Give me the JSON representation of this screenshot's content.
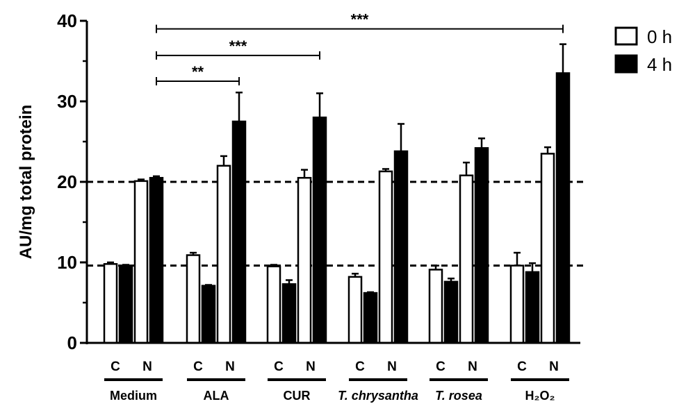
{
  "chart_data": {
    "type": "bar",
    "title": "",
    "ylabel": "AU/mg total protein",
    "xlabel": "",
    "ylim": [
      0,
      40
    ],
    "yticks": [
      "0",
      "10",
      "20",
      "30",
      "40"
    ],
    "grid": false,
    "legend_position": "top-right",
    "groups": [
      {
        "label": "Medium",
        "italic": false,
        "subs": [
          "C",
          "N"
        ]
      },
      {
        "label": "ALA",
        "italic": false,
        "subs": [
          "C",
          "N"
        ]
      },
      {
        "label": "CUR",
        "italic": false,
        "subs": [
          "C",
          "N"
        ]
      },
      {
        "label": "T. chrysantha",
        "italic": true,
        "subs": [
          "C",
          "N"
        ]
      },
      {
        "label": "T. rosea",
        "italic": true,
        "subs": [
          "C",
          "N"
        ]
      },
      {
        "label": "H2O2",
        "display": "H₂O₂",
        "italic": false,
        "subs": [
          "C",
          "N"
        ]
      }
    ],
    "series": [
      {
        "name": "0 h",
        "fill": "#ffffff",
        "values": [
          9.8,
          20.1,
          10.9,
          22.0,
          9.5,
          20.5,
          8.2,
          21.3,
          9.1,
          20.8,
          9.6,
          23.5
        ],
        "errors": [
          0.2,
          0.2,
          0.3,
          1.2,
          0.2,
          1.0,
          0.4,
          0.3,
          0.5,
          1.6,
          1.6,
          0.8
        ]
      },
      {
        "name": "4 h",
        "fill": "#000000",
        "values": [
          9.5,
          20.5,
          7.1,
          27.5,
          7.3,
          28.0,
          6.2,
          23.8,
          7.6,
          24.2,
          8.8,
          33.5
        ],
        "errors": [
          0.2,
          0.2,
          0.1,
          3.6,
          0.5,
          3.0,
          0.1,
          3.4,
          0.4,
          1.2,
          1.1,
          3.6
        ]
      }
    ],
    "reference_lines": [
      {
        "y": 20.0,
        "style": "dashed"
      },
      {
        "y": 9.6,
        "style": "dashed"
      }
    ],
    "significance": [
      {
        "label": "**",
        "from_group": 0,
        "to_group": 1,
        "y": 32.5
      },
      {
        "label": "***",
        "from_group": 0,
        "to_group": 2,
        "y": 35.7
      },
      {
        "label": "***",
        "from_group": 0,
        "to_group": 5,
        "y": 39.0
      }
    ]
  }
}
